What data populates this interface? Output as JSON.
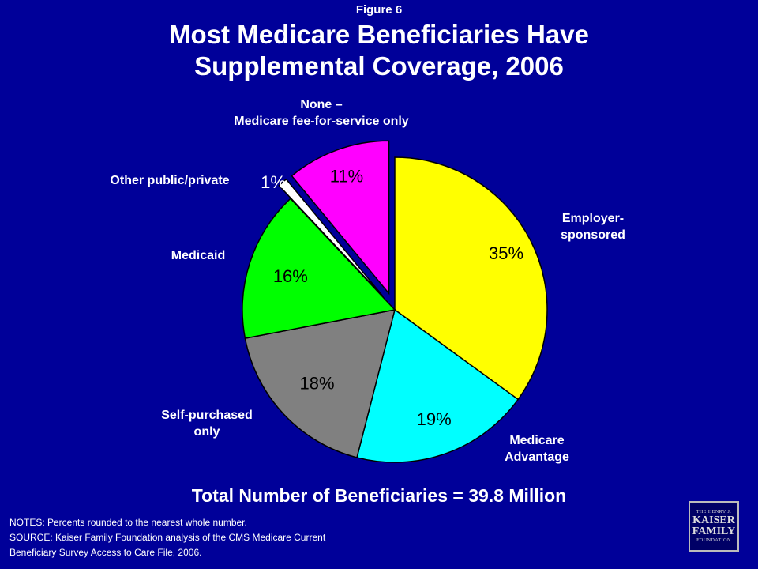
{
  "figure_label": "Figure 6",
  "title_line1": "Most Medicare Beneficiaries Have",
  "title_line2": "Supplemental Coverage, 2006",
  "total_text": "Total Number of Beneficiaries = 39.8 Million",
  "notes": [
    "NOTES: Percents rounded to the nearest whole number.",
    "SOURCE: Kaiser Family Foundation analysis of the CMS Medicare Current",
    "Beneficiary Survey Access to Care File, 2006."
  ],
  "logo": {
    "line1": "THE HENRY J.",
    "line2": "KAISER",
    "line3": "FAMILY",
    "line4": "FOUNDATION"
  },
  "chart_data": {
    "type": "pie",
    "title": "Most Medicare Beneficiaries Have Supplemental Coverage, 2006",
    "slices": [
      {
        "label": "Employer-sponsored",
        "value": 35,
        "display": "35%",
        "color": "#ffff00",
        "exploded": false
      },
      {
        "label": "Medicare Advantage",
        "value": 19,
        "display": "19%",
        "color": "#00ffff",
        "exploded": false
      },
      {
        "label": "Self-purchased only",
        "value": 18,
        "display": "18%",
        "color": "#808080",
        "exploded": false
      },
      {
        "label": "Medicaid",
        "value": 16,
        "display": "16%",
        "color": "#00ff00",
        "exploded": false
      },
      {
        "label": "Other public/private",
        "value": 1,
        "display": "1%",
        "color": "#ffffff",
        "exploded": true
      },
      {
        "label": "None – Medicare fee-for-service only",
        "value": 11,
        "display": "11%",
        "color": "#ff00ff",
        "exploded": true
      }
    ],
    "category_labels": {
      "employer_line1": "Employer-",
      "employer_line2": "sponsored",
      "ma_line1": "Medicare",
      "ma_line2": "Advantage",
      "self_line1": "Self-purchased",
      "self_line2": "only",
      "medicaid": "Medicaid",
      "other": "Other public/private",
      "none_line1": "None –",
      "none_line2": "Medicare fee-for-service only"
    }
  }
}
